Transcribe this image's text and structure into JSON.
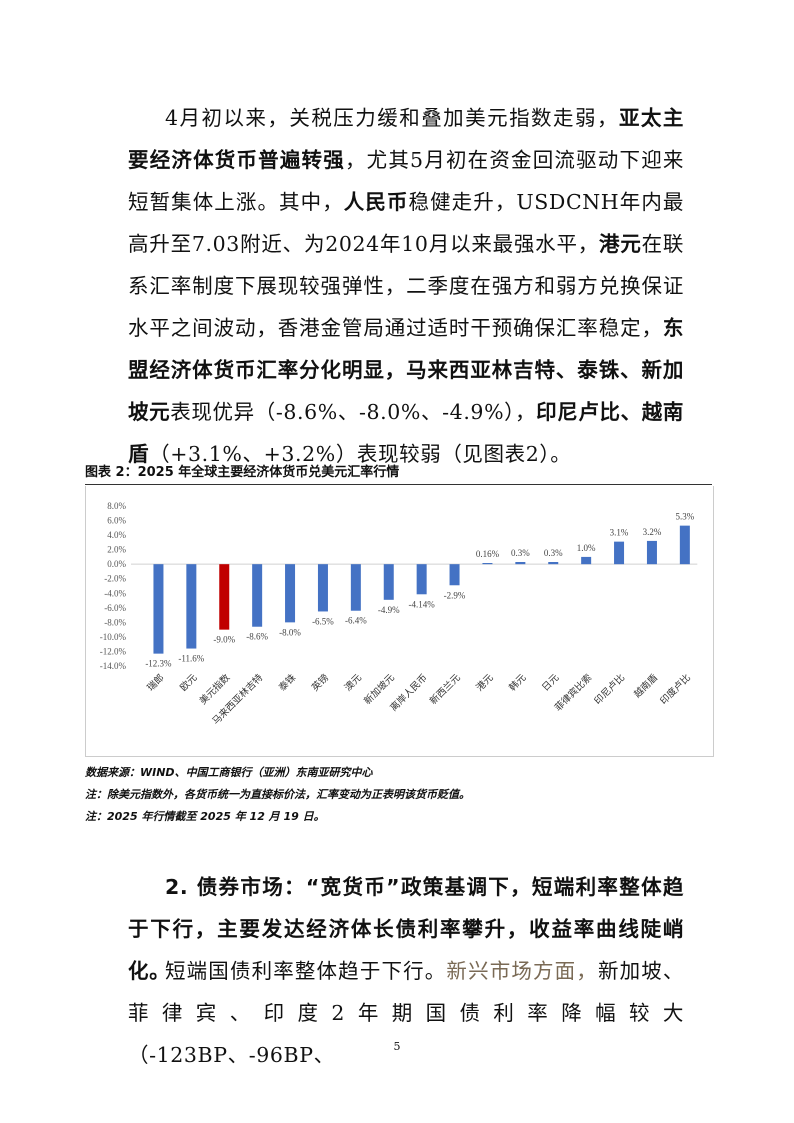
{
  "paragraph1": [
    {
      "t": "4月初以来，关税压力缓和叠加美元指数走弱，",
      "b": false
    },
    {
      "t": "亚太主要经济体货币普遍转强",
      "b": true
    },
    {
      "t": "，尤其5月初在资金回流驱动下迎来短暂集体上涨。其中，",
      "b": false
    },
    {
      "t": "人民币",
      "b": true
    },
    {
      "t": "稳健走升，USDCNH年内最高升至7.03附近、为2024年10月以来最强水平，",
      "b": false
    },
    {
      "t": "港元",
      "b": true
    },
    {
      "t": "在联系汇率制度下展现较强弹性，二季度在强方和弱方兑换保证水平之间波动，香港金管局通过适时干预确保汇率稳定，",
      "b": false
    },
    {
      "t": "东盟经济体货币汇率分化明显，马来西亚林吉特、泰铢、新加坡元",
      "b": true
    },
    {
      "t": "表现优异（-8.6%、-8.0%、-4.9%），",
      "b": false
    },
    {
      "t": "印尼卢比、越南盾",
      "b": true
    },
    {
      "t": "（+3.1%、+3.2%）表现较弱（见图表2）。",
      "b": false
    }
  ],
  "figure": {
    "caption": "图表 2：2025 年全球主要经济体货币兑美元汇率行情",
    "source": "数据来源：WIND、中国工商银行（亚洲）东南亚研究中心",
    "note1": "注：除美元指数外，各货币统一为直接标价法，汇率变动为正表明该货币贬值。",
    "note2": "注：2025 年行情截至 2025 年 12 月 19 日。"
  },
  "chart_data": {
    "type": "bar",
    "categories": [
      "瑞郎",
      "欧元",
      "美元指数",
      "马来西亚林吉特",
      "泰铢",
      "英镑",
      "澳元",
      "新加坡元",
      "离岸人民币",
      "新西兰元",
      "港元",
      "韩元",
      "日元",
      "菲律宾比索",
      "印尼卢比",
      "越南盾",
      "印度卢比"
    ],
    "values": [
      -12.3,
      -11.6,
      -9.0,
      -8.6,
      -8.0,
      -6.5,
      -6.4,
      -4.9,
      -4.14,
      -2.9,
      0.16,
      0.3,
      0.3,
      1.0,
      3.1,
      3.2,
      5.3
    ],
    "data_labels": [
      "-12.3%",
      "-11.6%",
      "-9.0%",
      "-8.6%",
      "-8.0%",
      "-6.5%",
      "-6.4%",
      "-4.9%",
      "-4.14%",
      "-2.9%",
      "0.16%",
      "0.3%",
      "0.3%",
      "1.0%",
      "3.1%",
      "3.2%",
      "5.3%"
    ],
    "yticks": [
      "8.0%",
      "6.0%",
      "4.0%",
      "2.0%",
      "0.0%",
      "-2.0%",
      "-4.0%",
      "-6.0%",
      "-8.0%",
      "-10.0%",
      "-12.0%",
      "-14.0%"
    ],
    "ylim": [
      -14,
      8
    ],
    "grid": false,
    "colors": {
      "default": "#4472c4",
      "highlight": "#c00000"
    },
    "highlight_index": 2
  },
  "section2": {
    "heading": "2. 债券市场：“宽货币”政策基调下，短端利率整体趋于下行，主要发达经济体长债利率攀升，收益率曲线陡峭化。",
    "p_lead": "短端国债利率整体趋于下行。",
    "p_hl": "新兴市场方面，",
    "p_rest": "新加坡、菲律宾、印度2年期国债利率降幅较大（-123BP、-96BP、"
  },
  "page_number": "5"
}
